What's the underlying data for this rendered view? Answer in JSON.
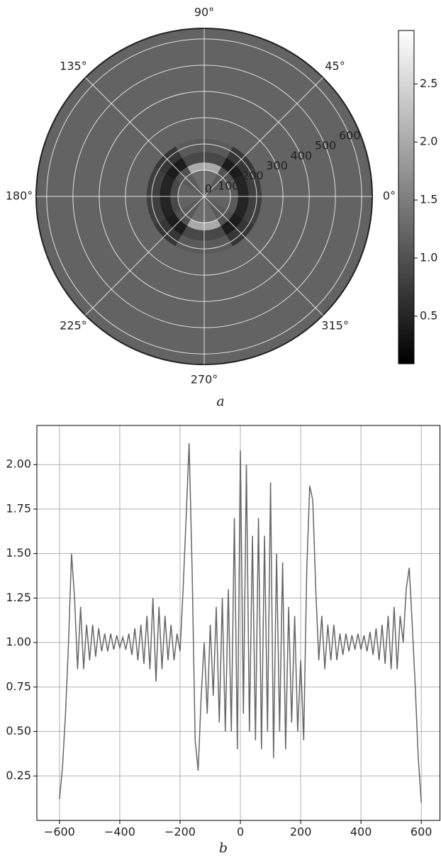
{
  "chart_data": [
    {
      "type": "polar-heatmap",
      "caption": "a",
      "colormap": "gray",
      "r_bins": [
        0,
        100,
        130,
        170,
        220,
        640
      ],
      "theta_bins": [
        0,
        30,
        60,
        90,
        120,
        150,
        180,
        210,
        240,
        270,
        300,
        330,
        360
      ],
      "values": [
        [
          1.2,
          1.1,
          1.3,
          1.3,
          1.1,
          1.2,
          1.2,
          1.1,
          1.3,
          1.3,
          1.1,
          1.2
        ],
        [
          1.1,
          1.0,
          2.0,
          2.0,
          1.0,
          0.9,
          0.9,
          1.0,
          2.0,
          2.0,
          1.0,
          1.1
        ],
        [
          0.5,
          0.4,
          0.9,
          0.9,
          0.4,
          0.5,
          0.5,
          0.4,
          0.9,
          0.9,
          0.4,
          0.5
        ],
        [
          0.8,
          0.7,
          1.1,
          1.1,
          0.7,
          0.8,
          0.8,
          0.7,
          1.1,
          1.1,
          0.7,
          0.8
        ],
        [
          1.2,
          1.2,
          1.2,
          1.2,
          1.2,
          1.2,
          1.2,
          1.2,
          1.2,
          1.2,
          1.2,
          1.2
        ]
      ],
      "rlim": [
        0,
        640
      ],
      "rticks": [
        0,
        100,
        200,
        300,
        400,
        500,
        600
      ],
      "thetaticks": [
        {
          "value": 0,
          "label": "0°"
        },
        {
          "value": 45,
          "label": "45°"
        },
        {
          "value": 90,
          "label": "90°"
        },
        {
          "value": 135,
          "label": "135°"
        },
        {
          "value": 180,
          "label": "180°"
        },
        {
          "value": 225,
          "label": "225°"
        },
        {
          "value": 270,
          "label": "270°"
        },
        {
          "value": 315,
          "label": "315°"
        }
      ],
      "clim": [
        0.09,
        2.96
      ],
      "cticks": [
        0.5,
        {
          "value": 1,
          "label": "1.0"
        },
        1.5,
        {
          "value": 2,
          "label": "2.0"
        },
        2.5
      ],
      "grid": true
    },
    {
      "type": "line",
      "caption": "b",
      "color": "#666666",
      "grid": true,
      "x": [
        -600,
        -590,
        -580,
        -570,
        -560,
        -550,
        -540,
        -530,
        -520,
        -510,
        -500,
        -490,
        -480,
        -470,
        -460,
        -450,
        -440,
        -430,
        -420,
        -410,
        -400,
        -390,
        -380,
        -370,
        -360,
        -350,
        -340,
        -330,
        -320,
        -310,
        -300,
        -290,
        -280,
        -270,
        -260,
        -250,
        -240,
        -230,
        -220,
        -210,
        -200,
        -190,
        -180,
        -170,
        -160,
        -150,
        -140,
        -130,
        -120,
        -110,
        -100,
        -90,
        -80,
        -70,
        -60,
        -50,
        -40,
        -30,
        -20,
        -10,
        0,
        10,
        20,
        30,
        40,
        50,
        60,
        70,
        80,
        90,
        100,
        110,
        120,
        130,
        140,
        150,
        160,
        170,
        180,
        190,
        200,
        210,
        220,
        230,
        240,
        250,
        260,
        270,
        280,
        290,
        300,
        310,
        320,
        330,
        340,
        350,
        360,
        370,
        380,
        390,
        400,
        410,
        420,
        430,
        440,
        450,
        460,
        470,
        480,
        490,
        500,
        510,
        520,
        530,
        540,
        550,
        560,
        570,
        580,
        590,
        600
      ],
      "values": [
        0.12,
        0.3,
        0.6,
        1.0,
        1.5,
        1.25,
        0.85,
        1.2,
        0.85,
        1.1,
        0.9,
        1.1,
        0.92,
        1.08,
        0.95,
        1.05,
        0.95,
        1.05,
        0.96,
        1.04,
        0.97,
        1.03,
        0.96,
        1.05,
        0.93,
        1.08,
        0.9,
        1.1,
        0.88,
        1.15,
        0.85,
        1.25,
        0.78,
        1.2,
        0.85,
        1.15,
        0.9,
        1.1,
        0.9,
        1.05,
        0.95,
        1.3,
        1.7,
        2.12,
        1.4,
        0.45,
        0.28,
        0.7,
        1.0,
        0.6,
        1.1,
        0.7,
        1.2,
        0.55,
        1.25,
        0.5,
        1.3,
        0.5,
        1.7,
        0.4,
        2.08,
        0.6,
        2.0,
        0.5,
        1.6,
        0.45,
        1.7,
        0.4,
        1.6,
        0.5,
        1.9,
        0.35,
        1.5,
        0.5,
        1.45,
        0.4,
        1.2,
        0.55,
        1.15,
        0.5,
        0.9,
        0.45,
        1.4,
        1.88,
        1.8,
        1.3,
        0.9,
        1.15,
        0.85,
        1.1,
        0.9,
        1.1,
        0.9,
        1.05,
        0.93,
        1.05,
        0.95,
        1.04,
        0.96,
        1.05,
        0.96,
        1.04,
        0.95,
        1.06,
        0.93,
        1.08,
        0.9,
        1.1,
        0.88,
        1.15,
        0.85,
        1.2,
        0.85,
        1.15,
        1.0,
        1.3,
        1.42,
        1.1,
        0.75,
        0.35,
        0.1
      ],
      "xlim": [
        -675,
        663
      ],
      "ylim": [
        0,
        2.22
      ],
      "xticks": [
        {
          "value": -600,
          "label": "−600"
        },
        {
          "value": -400,
          "label": "−400"
        },
        {
          "value": -200,
          "label": "−200"
        },
        0,
        200,
        400,
        600
      ],
      "yticks": [
        0.25,
        {
          "value": 0.5,
          "label": "0.50"
        },
        0.75,
        {
          "value": 1,
          "label": "1.00"
        },
        1.25,
        {
          "value": 1.5,
          "label": "1.50"
        },
        1.75,
        {
          "value": 2,
          "label": "2.00"
        }
      ]
    }
  ]
}
